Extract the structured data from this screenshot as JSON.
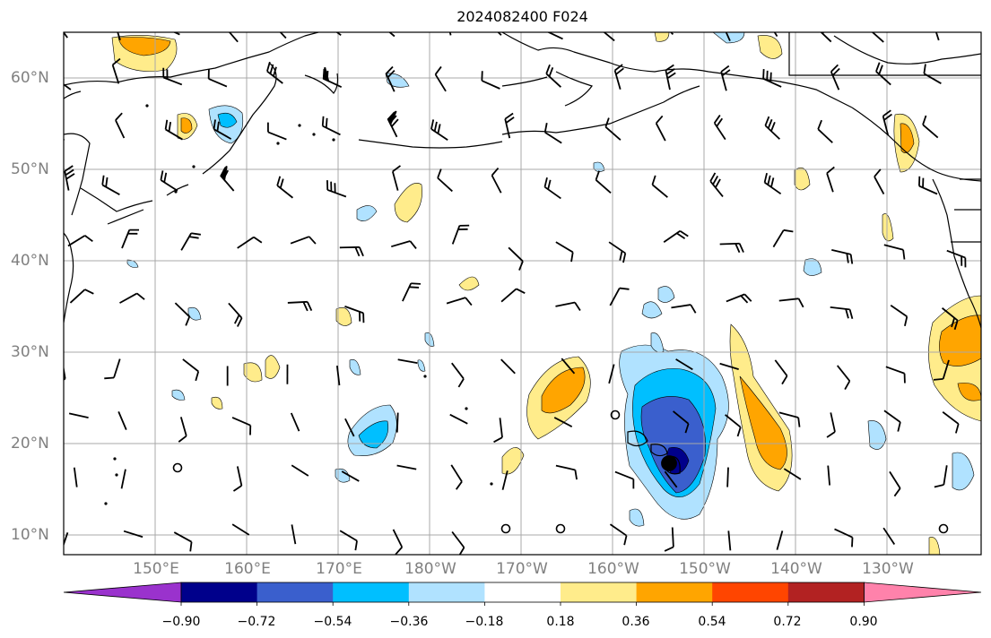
{
  "title": "2024082400 F024",
  "lat_labels": [
    "60°N",
    "50°N",
    "40°N",
    "30°N",
    "20°N",
    "10°N"
  ],
  "lon_labels": [
    "150°E",
    "160°E",
    "170°E",
    "180°W",
    "170°W",
    "160°W",
    "150°W",
    "140°W",
    "130°W"
  ],
  "colorbar": {
    "tick_labels": [
      "−0.90",
      "−0.72",
      "−0.54",
      "−0.36",
      "−0.18",
      "0.18",
      "0.36",
      "0.54",
      "0.72",
      "0.90"
    ],
    "colors": [
      "#9a32cd",
      "#00008b",
      "#3a5fcd",
      "#00bfff",
      "#b0e2ff",
      "#ffffff",
      "#ffec8b",
      "#ffa500",
      "#ff4500",
      "#b22222",
      "#ff82ab"
    ]
  },
  "palette": {
    "coast": "#000000",
    "grid": "#a8a8a8",
    "barb": "#000000"
  }
}
